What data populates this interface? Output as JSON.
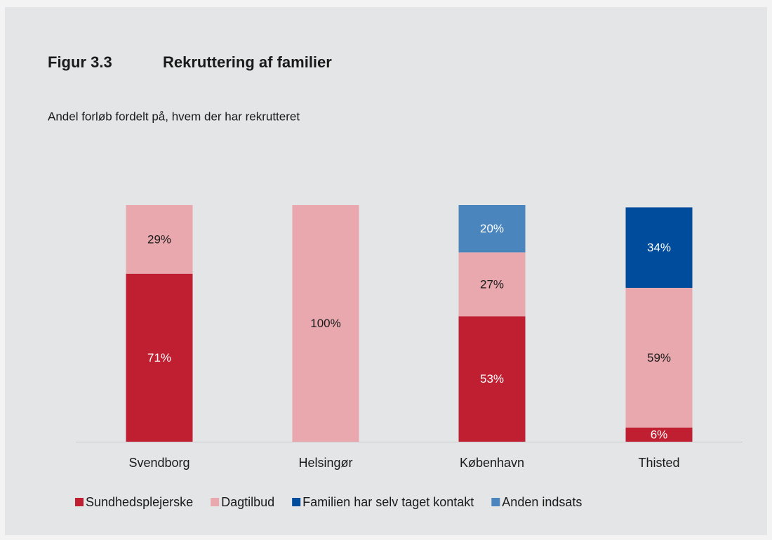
{
  "chart_data": {
    "type": "stacked_bar",
    "figure_label": "Figur 3.3",
    "title": "Rekruttering af familier",
    "subtitle": "Andel forløb fordelt på, hvem der har rekrutteret",
    "categories": [
      "Svendborg",
      "Helsingør",
      "København",
      "Thisted"
    ],
    "ylim": [
      0,
      100
    ],
    "series": [
      {
        "name": "Sundhedsplejerske",
        "color": "#c01f32",
        "values": [
          71,
          null,
          53,
          6
        ],
        "value_labels": [
          "71%",
          null,
          "53%",
          "6%"
        ]
      },
      {
        "name": "Dagtilbud",
        "color": "#e8a8ae",
        "values": [
          29,
          100,
          27,
          59
        ],
        "value_labels": [
          "29%",
          "100%",
          "27%",
          "59%"
        ]
      },
      {
        "name": "Familien har selv taget kontakt",
        "color": "#004c9c",
        "values": [
          null,
          null,
          null,
          34
        ],
        "value_labels": [
          null,
          null,
          null,
          "34%"
        ]
      },
      {
        "name": "Anden indsats",
        "color": "#4a86bd",
        "values": [
          null,
          null,
          20,
          null
        ],
        "value_labels": [
          null,
          null,
          "20%",
          null
        ]
      }
    ]
  }
}
